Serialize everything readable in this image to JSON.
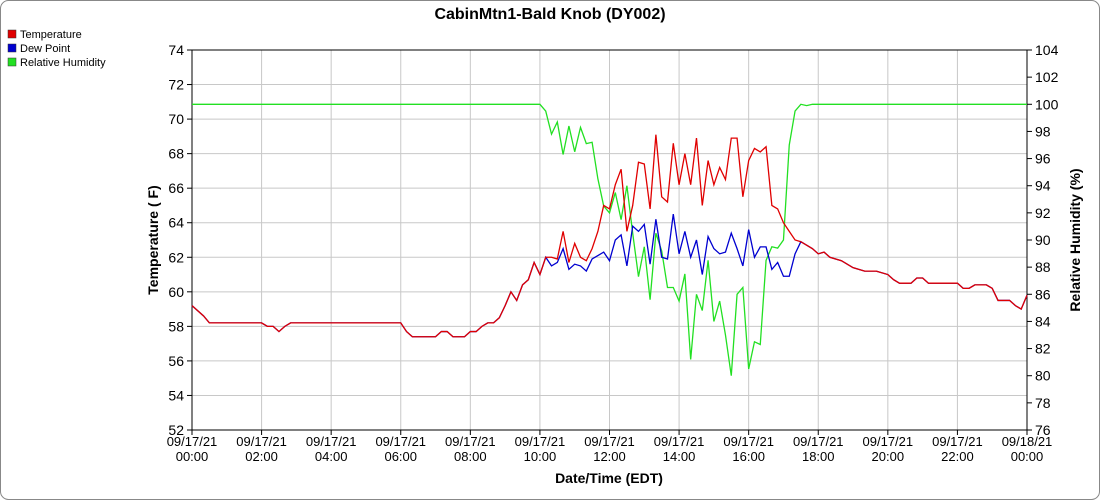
{
  "chart_data": {
    "type": "line",
    "title": "CabinMtn1-Bald Knob (DY002)",
    "x_label": "Date/Time (EDT)",
    "y_label": "Temperature ( F)",
    "y2_label": "Relative Humidity (%)",
    "x": [
      "09/17/21 00:00",
      "09/17/21 00:20",
      "09/17/21 00:30",
      "09/17/21 01:00",
      "09/17/21 01:30",
      "09/17/21 02:00",
      "09/17/21 02:10",
      "09/17/21 02:20",
      "09/17/21 02:30",
      "09/17/21 02:40",
      "09/17/21 02:50",
      "09/17/21 03:30",
      "09/17/21 04:30",
      "09/17/21 05:30",
      "09/17/21 06:00",
      "09/17/21 06:10",
      "09/17/21 06:20",
      "09/17/21 06:40",
      "09/17/21 07:00",
      "09/17/21 07:10",
      "09/17/21 07:20",
      "09/17/21 07:30",
      "09/17/21 07:50",
      "09/17/21 08:00",
      "09/17/21 08:10",
      "09/17/21 08:20",
      "09/17/21 08:30",
      "09/17/21 08:40",
      "09/17/21 08:50",
      "09/17/21 09:00",
      "09/17/21 09:10",
      "09/17/21 09:20",
      "09/17/21 09:30",
      "09/17/21 09:40",
      "09/17/21 09:50",
      "09/17/21 10:00",
      "09/17/21 10:10",
      "09/17/21 10:20",
      "09/17/21 10:30",
      "09/17/21 10:40",
      "09/17/21 10:50",
      "09/17/21 11:00",
      "09/17/21 11:10",
      "09/17/21 11:20",
      "09/17/21 11:30",
      "09/17/21 11:40",
      "09/17/21 11:50",
      "09/17/21 12:00",
      "09/17/21 12:10",
      "09/17/21 12:20",
      "09/17/21 12:30",
      "09/17/21 12:40",
      "09/17/21 12:50",
      "09/17/21 13:00",
      "09/17/21 13:10",
      "09/17/21 13:20",
      "09/17/21 13:30",
      "09/17/21 13:40",
      "09/17/21 13:50",
      "09/17/21 14:00",
      "09/17/21 14:10",
      "09/17/21 14:20",
      "09/17/21 14:30",
      "09/17/21 14:40",
      "09/17/21 14:50",
      "09/17/21 15:00",
      "09/17/21 15:10",
      "09/17/21 15:20",
      "09/17/21 15:30",
      "09/17/21 15:40",
      "09/17/21 15:50",
      "09/17/21 16:00",
      "09/17/21 16:10",
      "09/17/21 16:20",
      "09/17/21 16:30",
      "09/17/21 16:40",
      "09/17/21 16:50",
      "09/17/21 17:00",
      "09/17/21 17:10",
      "09/17/21 17:20",
      "09/17/21 17:30",
      "09/17/21 17:40",
      "09/17/21 17:50",
      "09/17/21 18:00",
      "09/17/21 18:10",
      "09/17/21 18:20",
      "09/17/21 18:40",
      "09/17/21 19:00",
      "09/17/21 19:20",
      "09/17/21 19:40",
      "09/17/21 20:00",
      "09/17/21 20:10",
      "09/17/21 20:20",
      "09/17/21 20:40",
      "09/17/21 20:50",
      "09/17/21 21:00",
      "09/17/21 21:10",
      "09/17/21 21:40",
      "09/17/21 22:00",
      "09/17/21 22:10",
      "09/17/21 22:20",
      "09/17/21 22:30",
      "09/17/21 22:50",
      "09/17/21 23:00",
      "09/17/21 23:10",
      "09/17/21 23:30",
      "09/17/21 23:40",
      "09/17/21 23:50",
      "09/18/21 00:00"
    ],
    "series": [
      {
        "name": "Temperature",
        "color": "#e00000",
        "values": [
          59.2,
          58.6,
          58.2,
          58.2,
          58.2,
          58.2,
          58.0,
          58.0,
          57.7,
          58.0,
          58.2,
          58.2,
          58.2,
          58.2,
          58.2,
          57.7,
          57.4,
          57.4,
          57.4,
          57.7,
          57.7,
          57.4,
          57.4,
          57.7,
          57.7,
          58.0,
          58.2,
          58.2,
          58.5,
          59.2,
          60.0,
          59.5,
          60.4,
          60.7,
          61.7,
          61.0,
          62.0,
          62.0,
          61.9,
          63.5,
          61.7,
          62.8,
          62.0,
          61.8,
          62.5,
          63.5,
          65.0,
          64.8,
          66.2,
          67.1,
          63.5,
          65.0,
          67.5,
          67.4,
          64.8,
          69.1,
          65.5,
          65.2,
          68.6,
          66.2,
          68.0,
          66.2,
          68.9,
          65.0,
          67.6,
          66.2,
          67.2,
          66.5,
          68.9,
          68.9,
          65.5,
          67.6,
          68.3,
          68.1,
          68.4,
          65.0,
          64.8,
          64.0,
          63.5,
          63.0,
          62.9,
          62.7,
          62.5,
          62.2,
          62.3,
          62.0,
          61.8,
          61.4,
          61.2,
          61.2,
          61.0,
          60.7,
          60.5,
          60.5,
          60.8,
          60.8,
          60.5,
          60.5,
          60.5,
          60.2,
          60.2,
          60.4,
          60.4,
          60.2,
          59.5,
          59.5,
          59.2,
          59.0,
          59.8
        ]
      },
      {
        "name": "Dew Point",
        "color": "#0000d0",
        "values": [
          59.2,
          58.6,
          58.2,
          58.2,
          58.2,
          58.2,
          58.0,
          58.0,
          57.7,
          58.0,
          58.2,
          58.2,
          58.2,
          58.2,
          58.2,
          57.7,
          57.4,
          57.4,
          57.4,
          57.7,
          57.7,
          57.4,
          57.4,
          57.7,
          57.7,
          58.0,
          58.2,
          58.2,
          58.5,
          59.2,
          60.0,
          59.5,
          60.4,
          60.7,
          61.7,
          61.0,
          62.0,
          61.5,
          61.7,
          62.5,
          61.3,
          61.6,
          61.5,
          61.2,
          61.9,
          62.1,
          62.3,
          61.8,
          63.0,
          63.3,
          61.5,
          63.8,
          63.5,
          63.9,
          61.6,
          64.2,
          62.0,
          61.9,
          64.5,
          62.2,
          63.5,
          62.0,
          63.0,
          61.0,
          63.2,
          62.5,
          62.2,
          62.3,
          63.4,
          62.5,
          61.5,
          63.6,
          62.0,
          62.6,
          62.6,
          61.3,
          61.7,
          60.9,
          60.9,
          62.2,
          62.9,
          62.7,
          62.5,
          62.2,
          62.3,
          62.0,
          61.8,
          61.4,
          61.2,
          61.2,
          61.0,
          60.7,
          60.5,
          60.5,
          60.8,
          60.8,
          60.5,
          60.5,
          60.5,
          60.2,
          60.2,
          60.4,
          60.4,
          60.2,
          59.5,
          59.5,
          59.2,
          59.0,
          59.8
        ]
      },
      {
        "name": "Relative Humidity",
        "color": "#22e022",
        "axis": "y2",
        "values": [
          100,
          100,
          100,
          100,
          100,
          100,
          100,
          100,
          100,
          100,
          100,
          100,
          100,
          100,
          100,
          100,
          100,
          100,
          100,
          100,
          100,
          100,
          100,
          100,
          100,
          100,
          100,
          100,
          100,
          100,
          100,
          100,
          100,
          100,
          100,
          100,
          99.5,
          97.8,
          98.7,
          96.3,
          98.4,
          96.5,
          98.3,
          97.1,
          97.2,
          94.5,
          92.5,
          92.0,
          93.5,
          91.5,
          94.0,
          90.5,
          87.3,
          89.5,
          85.6,
          90.5,
          89.2,
          86.5,
          86.5,
          85.5,
          87.5,
          81.2,
          86.0,
          84.8,
          88.5,
          84.0,
          85.5,
          83.0,
          80.0,
          86.0,
          86.5,
          80.5,
          82.5,
          82.3,
          88.5,
          89.5,
          89.4,
          90.0,
          97.0,
          99.5,
          100,
          99.9,
          100,
          100,
          100,
          100,
          100,
          100,
          100,
          100,
          100,
          100,
          100,
          100,
          100,
          100,
          100,
          100,
          100,
          100,
          100,
          100,
          100,
          100,
          100,
          100,
          100,
          100,
          100
        ]
      }
    ],
    "xlim": [
      "09/17/21 00:00",
      "09/18/21 00:00"
    ],
    "xticks": [
      "09/17/21 00:00",
      "09/17/21 02:00",
      "09/17/21 04:00",
      "09/17/21 06:00",
      "09/17/21 08:00",
      "09/17/21 10:00",
      "09/17/21 12:00",
      "09/17/21 14:00",
      "09/17/21 16:00",
      "09/17/21 18:00",
      "09/17/21 20:00",
      "09/17/21 22:00",
      "09/18/21 00:00"
    ],
    "ylim": [
      52,
      74
    ],
    "yticks": [
      52,
      54,
      56,
      58,
      60,
      62,
      64,
      66,
      68,
      70,
      72,
      74
    ],
    "y2lim": [
      76,
      104
    ],
    "y2ticks": [
      76,
      78,
      80,
      82,
      84,
      86,
      88,
      90,
      92,
      94,
      96,
      98,
      100,
      102,
      104
    ],
    "grid": true,
    "legend": "top-left"
  }
}
